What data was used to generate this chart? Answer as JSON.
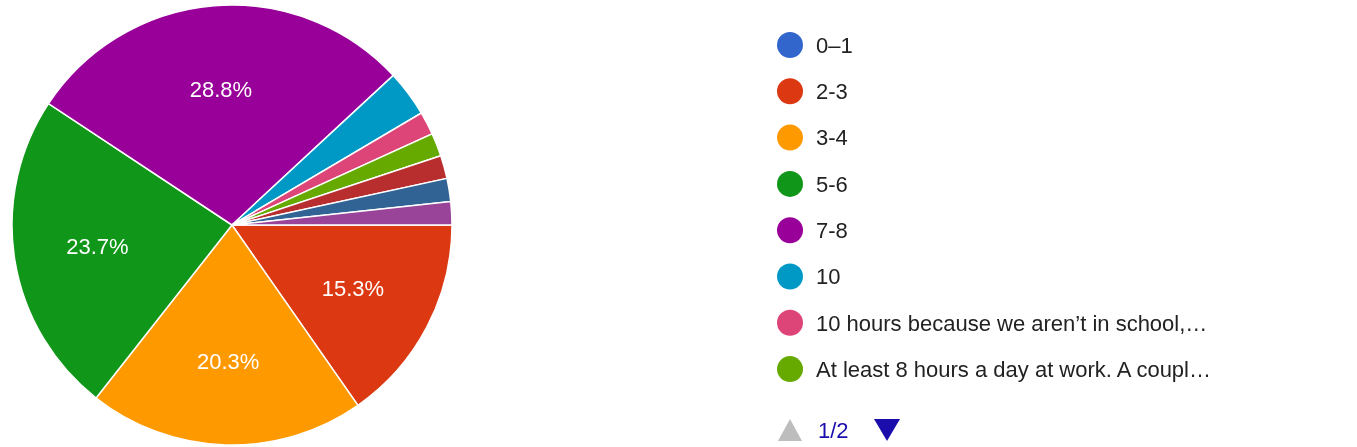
{
  "chart_data": {
    "type": "pie",
    "categories": [
      "0–1",
      "2-3",
      "3-4",
      "5-6",
      "7-8",
      "10",
      "10 hours because we aren’t in school,…",
      "At least 8 hours a day at work. A coupl…",
      null,
      null,
      null
    ],
    "values": [
      0,
      15.3,
      20.3,
      23.7,
      28.8,
      3.4,
      1.7,
      1.7,
      1.7,
      1.7,
      1.7
    ],
    "colors": [
      "#3366cc",
      "#dc3912",
      "#ff9900",
      "#109618",
      "#990099",
      "#0099c6",
      "#dd4477",
      "#66aa00",
      "#b82e2e",
      "#316395",
      "#994499"
    ],
    "value_labels": [
      null,
      "15.3%",
      "20.3%",
      "23.7%",
      "28.8%",
      null,
      null,
      null,
      null,
      null,
      null
    ],
    "legend": "right",
    "annotations": [
      "1/2"
    ]
  }
}
